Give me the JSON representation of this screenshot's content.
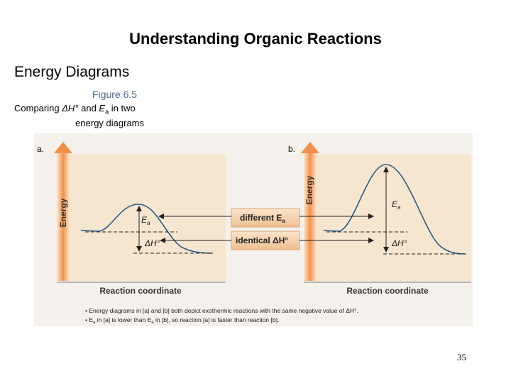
{
  "slide": {
    "title": "Understanding Organic Reactions",
    "subtitle": "Energy Diagrams",
    "figure_label": "Figure 6.5",
    "caption_line1_a": "Comparing ",
    "caption_dh": "ΔH°",
    "caption_mid": " and ",
    "caption_ea": "E",
    "caption_ea_sub": "a",
    "caption_line1_b": " in two",
    "caption_line2": "energy diagrams",
    "page_number": "35"
  },
  "figure": {
    "panel_a_label": "a.",
    "panel_b_label": "b.",
    "y_axis_label": "Energy",
    "x_axis_label": "Reaction coordinate",
    "ea_label": "E",
    "ea_sub": "a",
    "dh_label": "ΔH°",
    "center_box_1": "different E",
    "center_box_1_sub": "a",
    "center_box_2": "identical ΔH°",
    "bullet_1": "• Energy diagrams in [a] and [b] both depict exothermic reactions with the same negative value of ΔH°.",
    "bullet_2": "• E",
    "bullet_2_sub": "a",
    "bullet_2_mid": " in [a] is lower than E",
    "bullet_2_sub2": "a",
    "bullet_2_end": " in [b], so reaction [a] is faster than reaction [b].",
    "colors": {
      "panel_bg": "#f6e6d0",
      "axis_arrow": "#f0914a",
      "curve": "#2a5a8a",
      "box_fill": "#f3d2b0"
    }
  }
}
